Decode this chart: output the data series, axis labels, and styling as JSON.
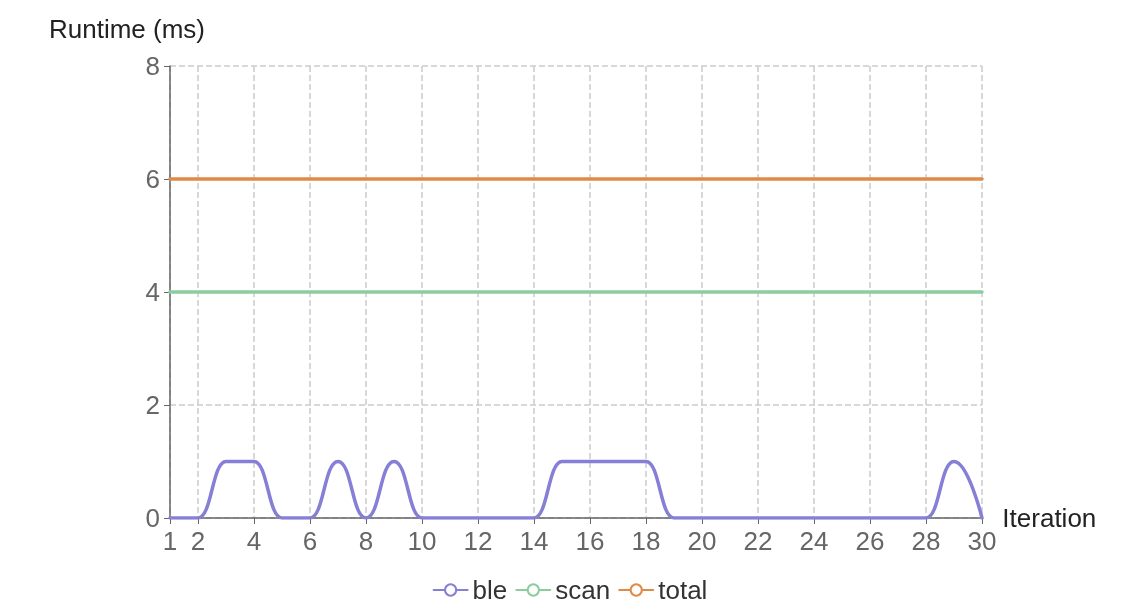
{
  "chart_data": {
    "type": "line",
    "xlabel": "Iteration",
    "ylabel": "Runtime (ms)",
    "x": [
      1,
      2,
      3,
      4,
      5,
      6,
      7,
      8,
      9,
      10,
      11,
      12,
      13,
      14,
      15,
      16,
      17,
      18,
      19,
      20,
      21,
      22,
      23,
      24,
      25,
      26,
      27,
      28,
      29,
      30
    ],
    "series": [
      {
        "name": "ble",
        "color": "#8580d6",
        "values": [
          0,
          0,
          1,
          1,
          0,
          0,
          1,
          0,
          1,
          0,
          0,
          0,
          0,
          0,
          1,
          1,
          1,
          1,
          0,
          0,
          0,
          0,
          0,
          0,
          0,
          0,
          0,
          0,
          1,
          0
        ]
      },
      {
        "name": "scan",
        "color": "#8ccda0",
        "values": [
          4,
          4,
          4,
          4,
          4,
          4,
          4,
          4,
          4,
          4,
          4,
          4,
          4,
          4,
          4,
          4,
          4,
          4,
          4,
          4,
          4,
          4,
          4,
          4,
          4,
          4,
          4,
          4,
          4,
          4
        ]
      },
      {
        "name": "total",
        "color": "#e08a48",
        "values": [
          6,
          6,
          6,
          6,
          6,
          6,
          6,
          6,
          6,
          6,
          6,
          6,
          6,
          6,
          6,
          6,
          6,
          6,
          6,
          6,
          6,
          6,
          6,
          6,
          6,
          6,
          6,
          6,
          6,
          6
        ]
      }
    ],
    "xlim": [
      1,
      30
    ],
    "xticks": [
      1,
      2,
      4,
      6,
      8,
      10,
      12,
      14,
      16,
      18,
      20,
      22,
      24,
      26,
      28,
      30
    ],
    "ylim": [
      0,
      8
    ],
    "yticks": [
      0,
      2,
      4,
      6,
      8
    ],
    "grid": true,
    "legend": "bottom",
    "marker": "none",
    "line_style": "solid"
  }
}
